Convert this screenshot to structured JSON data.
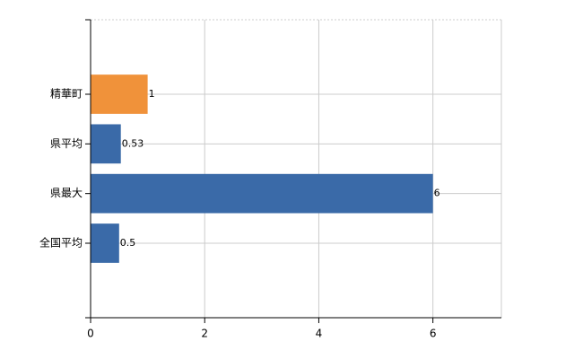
{
  "chart_data": {
    "type": "bar",
    "orientation": "horizontal",
    "categories": [
      "精華町",
      "県平均",
      "県最大",
      "全国平均"
    ],
    "values": [
      1,
      0.53,
      6,
      0.5
    ],
    "colors": [
      "#f0923a",
      "#3a6aa8",
      "#3a6aa8",
      "#3a6aa8"
    ],
    "xlim": [
      0,
      7.2
    ],
    "xticks": [
      0,
      2,
      4,
      6
    ],
    "grid": true
  }
}
